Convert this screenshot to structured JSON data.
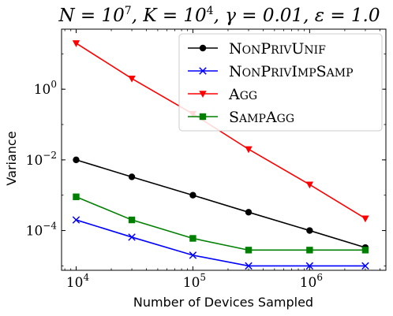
{
  "chart_data": {
    "type": "line",
    "title_parts": {
      "N": "N = 10",
      "N_exp": "7",
      "K": ", K = 10",
      "K_exp": "4",
      "gamma": ", γ = 0.01, ε = 1.0"
    },
    "xlabel": "Number of Devices Sampled",
    "ylabel": "Variance",
    "x_scale": "log",
    "y_scale": "log",
    "xlim": [
      7500,
      4500000
    ],
    "ylim": [
      7.5e-06,
      50
    ],
    "x_ticks": [
      {
        "value": 10000,
        "base": "10",
        "exp": "4"
      },
      {
        "value": 100000,
        "base": "10",
        "exp": "5"
      },
      {
        "value": 1000000,
        "base": "10",
        "exp": "6"
      }
    ],
    "y_ticks": [
      {
        "value": 0.0001,
        "base": "10",
        "exp": "−4"
      },
      {
        "value": 0.01,
        "base": "10",
        "exp": "−2"
      },
      {
        "value": 1,
        "base": "10",
        "exp": "0"
      }
    ],
    "x": [
      10000,
      30000,
      100000,
      300000,
      1000000,
      3000000
    ],
    "series": [
      {
        "name": "NonPrivUnif",
        "name_parts": [
          [
            "N",
            "big"
          ],
          [
            "ON",
            "small"
          ],
          [
            "P",
            "big"
          ],
          [
            "RIV",
            "small"
          ],
          [
            "U",
            "big"
          ],
          [
            "NIF",
            "small"
          ]
        ],
        "color": "#000000",
        "marker": "circle",
        "values": [
          0.01,
          0.0033,
          0.001,
          0.00033,
          0.0001,
          3.3e-05
        ]
      },
      {
        "name": "NonPrivImpSamp",
        "name_parts": [
          [
            "N",
            "big"
          ],
          [
            "ON",
            "small"
          ],
          [
            "P",
            "big"
          ],
          [
            "RIV",
            "small"
          ],
          [
            "I",
            "big"
          ],
          [
            "MP",
            "small"
          ],
          [
            "S",
            "big"
          ],
          [
            "AMP",
            "small"
          ]
        ],
        "color": "#0000ff",
        "marker": "x",
        "values": [
          0.0002,
          6.5e-05,
          2e-05,
          1e-05,
          1e-05,
          1e-05
        ]
      },
      {
        "name": "Agg",
        "name_parts": [
          [
            "A",
            "big"
          ],
          [
            "GG",
            "small"
          ]
        ],
        "color": "#ff0000",
        "marker": "triangle-down",
        "values": [
          20,
          2,
          0.2,
          0.02,
          0.002,
          0.00022
        ]
      },
      {
        "name": "SampAgg",
        "name_parts": [
          [
            "S",
            "big"
          ],
          [
            "AMP",
            "small"
          ],
          [
            "A",
            "big"
          ],
          [
            "GG",
            "small"
          ]
        ],
        "color": "#008000",
        "marker": "square",
        "values": [
          0.0009,
          0.0002,
          6e-05,
          2.8e-05,
          2.8e-05,
          2.8e-05
        ]
      }
    ],
    "legend": "top-right",
    "grid": false
  }
}
